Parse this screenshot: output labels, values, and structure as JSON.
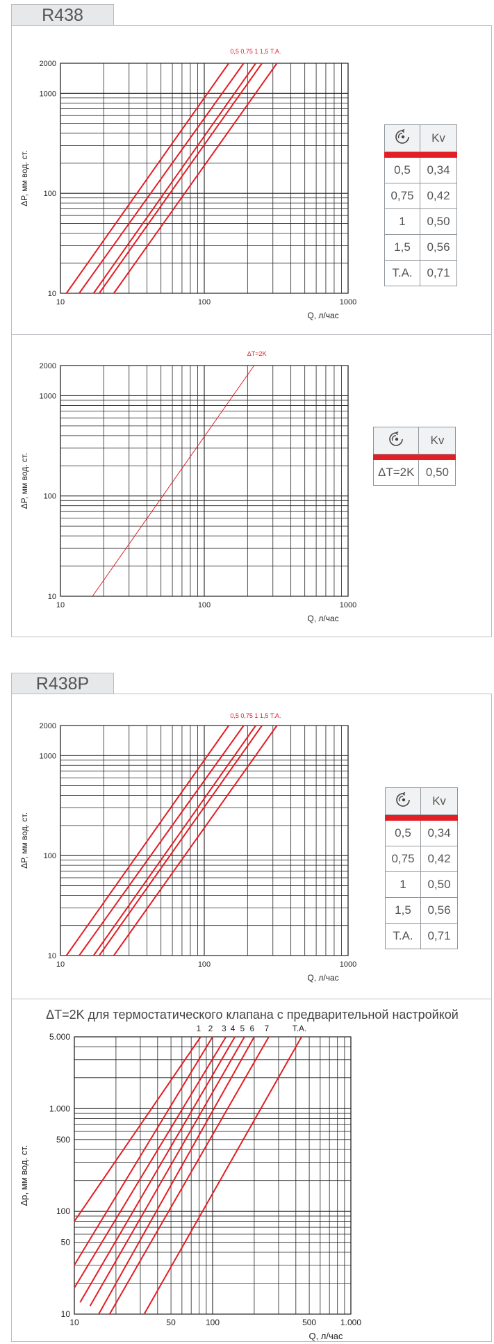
{
  "sections": [
    {
      "tab": "R438",
      "charts": [
        {
          "chart_data": {
            "type": "line",
            "xscale": "log",
            "yscale": "log",
            "xlim": [
              10,
              1000
            ],
            "ylim": [
              10,
              2000
            ],
            "xticks": [
              "10",
              "100",
              "1000"
            ],
            "yticks": [
              "10",
              "100",
              "1000",
              "2000"
            ],
            "xlabel": "Q, л/час",
            "ylabel": "ΔP, мм вод. ст.",
            "series_labels": [
              "0,5",
              "0,75",
              "1",
              "1,5",
              "T.A."
            ],
            "series": [
              {
                "name": "0,5",
                "x": [
                  11.0,
                  148
                ],
                "y": [
                  10,
                  2000
                ]
              },
              {
                "name": "0,75",
                "x": [
                  13.5,
                  188
                ],
                "y": [
                  10,
                  2000
                ]
              },
              {
                "name": "1",
                "x": [
                  17.0,
                  228
                ],
                "y": [
                  10,
                  2000
                ]
              },
              {
                "name": "1,5",
                "x": [
                  18.6,
                  252
                ],
                "y": [
                  10,
                  2000
                ]
              },
              {
                "name": "T.A.",
                "x": [
                  23.5,
                  320
                ],
                "y": [
                  10,
                  2000
                ]
              }
            ],
            "line_color": "#e31e24"
          },
          "table": {
            "header": [
              "valve-icon",
              "Kv"
            ],
            "rows": [
              [
                "0,5",
                "0,34"
              ],
              [
                "0,75",
                "0,42"
              ],
              [
                "1",
                "0,50"
              ],
              [
                "1,5",
                "0,56"
              ],
              [
                "T.A.",
                "0,71"
              ]
            ]
          }
        },
        {
          "chart_data": {
            "type": "line",
            "xscale": "log",
            "yscale": "log",
            "xlim": [
              10,
              1000
            ],
            "ylim": [
              10,
              2000
            ],
            "xticks": [
              "10",
              "100",
              "1000"
            ],
            "yticks": [
              "10",
              "100",
              "1000",
              "2000"
            ],
            "xlabel": "Q, л/час",
            "ylabel": "ΔP, мм вод. ст.",
            "series_labels": [
              "ΔT=2K"
            ],
            "series": [
              {
                "name": "ΔT=2K",
                "x": [
                  16.7,
                  222
                ],
                "y": [
                  10,
                  2000
                ]
              }
            ],
            "line_color": "#e31e24"
          },
          "table": {
            "header": [
              "valve-icon",
              "Kv"
            ],
            "rows": [
              [
                "ΔT=2K",
                "0,50"
              ]
            ]
          }
        }
      ]
    },
    {
      "tab": "R438P",
      "charts": [
        {
          "chart_data": {
            "type": "line",
            "xscale": "log",
            "yscale": "log",
            "xlim": [
              10,
              1000
            ],
            "ylim": [
              10,
              2000
            ],
            "xticks": [
              "10",
              "100",
              "1000"
            ],
            "yticks": [
              "10",
              "100",
              "1000",
              "2000"
            ],
            "xlabel": "Q, л/час",
            "ylabel": "ΔP, мм вод. ст.",
            "series_labels": [
              "0,5",
              "0,75",
              "1",
              "1,5",
              "T.A."
            ],
            "series": [
              {
                "name": "0,5",
                "x": [
                  11.0,
                  148
                ],
                "y": [
                  10,
                  2000
                ]
              },
              {
                "name": "0,75",
                "x": [
                  13.5,
                  188
                ],
                "y": [
                  10,
                  2000
                ]
              },
              {
                "name": "1",
                "x": [
                  17.0,
                  228
                ],
                "y": [
                  10,
                  2000
                ]
              },
              {
                "name": "1,5",
                "x": [
                  18.6,
                  252
                ],
                "y": [
                  10,
                  2000
                ]
              },
              {
                "name": "T.A.",
                "x": [
                  23.5,
                  320
                ],
                "y": [
                  10,
                  2000
                ]
              }
            ],
            "line_color": "#e31e24"
          },
          "table": {
            "header": [
              "valve-icon",
              "Kv"
            ],
            "rows": [
              [
                "0,5",
                "0,34"
              ],
              [
                "0,75",
                "0,42"
              ],
              [
                "1",
                "0,50"
              ],
              [
                "1,5",
                "0,56"
              ],
              [
                "T.A.",
                "0,71"
              ]
            ]
          }
        },
        {
          "title": "ΔT=2K для термостатического клапана с предварительной настройкой",
          "chart_data": {
            "type": "line",
            "xscale": "log",
            "yscale": "log",
            "xlim": [
              10,
              1000
            ],
            "ylim": [
              10,
              5000
            ],
            "xticks": [
              "10",
              "50",
              "100",
              "500",
              "1.000"
            ],
            "yticks": [
              "10",
              "50",
              "100",
              "500",
              "1.000",
              "5.000"
            ],
            "xlabel": "Q, л/час",
            "ylabel": "Δp, мм вод. ст.",
            "series_labels": [
              "1",
              "2",
              "3",
              "4",
              "5",
              "6",
              "7",
              "T.A."
            ],
            "series": [
              {
                "name": "1",
                "x": [
                  10,
                  82
                ],
                "y": [
                  80,
                  5000
                ]
              },
              {
                "name": "2",
                "x": [
                  10,
                  100
                ],
                "y": [
                  30,
                  5000
                ]
              },
              {
                "name": "3",
                "x": [
                  10,
                  125
                ],
                "y": [
                  18,
                  5000
                ]
              },
              {
                "name": "4",
                "x": [
                  11,
                  145
                ],
                "y": [
                  13,
                  5000
                ]
              },
              {
                "name": "5",
                "x": [
                  13,
                  170
                ],
                "y": [
                  12,
                  5000
                ]
              },
              {
                "name": "6",
                "x": [
                  15,
                  200
                ],
                "y": [
                  10,
                  5000
                ]
              },
              {
                "name": "7",
                "x": [
                  18,
                  255
                ],
                "y": [
                  10,
                  5000
                ]
              },
              {
                "name": "T.A.",
                "x": [
                  32,
                  440
                ],
                "y": [
                  10,
                  5000
                ]
              }
            ],
            "line_color": "#e31e24"
          }
        }
      ]
    }
  ]
}
